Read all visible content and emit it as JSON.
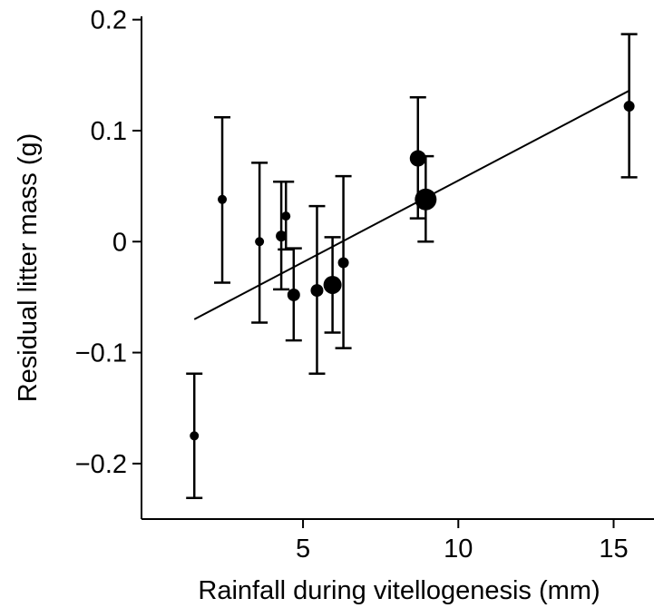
{
  "chart_data": {
    "type": "scatter",
    "title": "",
    "xlabel": "Rainfall during vitellogenesis (mm)",
    "ylabel": "Residual litter mass (g)",
    "xlim": [
      -0.2,
      16.3
    ],
    "ylim": [
      -0.25,
      0.203
    ],
    "x_ticks": [
      5,
      10,
      15
    ],
    "y_ticks": [
      -0.2,
      -0.1,
      0,
      0.1,
      0.2
    ],
    "x_tick_labels": [
      "5",
      "10",
      "15"
    ],
    "y_tick_labels": [
      "−0.2",
      "−0.1",
      "0",
      "0.1",
      "0.2"
    ],
    "grid": false,
    "legend": "none",
    "colors": {
      "points": "#000000",
      "lines": "#000000"
    },
    "points": [
      {
        "x": 1.5,
        "y": -0.175,
        "low": -0.231,
        "high": -0.119,
        "size": 5
      },
      {
        "x": 2.4,
        "y": 0.038,
        "low": -0.037,
        "high": 0.112,
        "size": 5
      },
      {
        "x": 3.6,
        "y": 0.0,
        "low": -0.073,
        "high": 0.071,
        "size": 5
      },
      {
        "x": 4.3,
        "y": 0.005,
        "low": -0.043,
        "high": 0.054,
        "size": 6
      },
      {
        "x": 4.45,
        "y": 0.023,
        "low": -0.007,
        "high": 0.054,
        "size": 5
      },
      {
        "x": 4.7,
        "y": -0.048,
        "low": -0.089,
        "high": -0.006,
        "size": 7
      },
      {
        "x": 5.45,
        "y": -0.044,
        "low": -0.119,
        "high": 0.032,
        "size": 7
      },
      {
        "x": 5.95,
        "y": -0.039,
        "low": -0.082,
        "high": 0.004,
        "size": 10
      },
      {
        "x": 6.3,
        "y": -0.019,
        "low": -0.096,
        "high": 0.059,
        "size": 6
      },
      {
        "x": 8.7,
        "y": 0.075,
        "low": 0.021,
        "high": 0.13,
        "size": 9
      },
      {
        "x": 8.95,
        "y": 0.038,
        "low": 0.0,
        "high": 0.077,
        "size": 12
      },
      {
        "x": 15.5,
        "y": 0.122,
        "low": 0.058,
        "high": 0.187,
        "size": 6
      }
    ],
    "fit_line": {
      "x": [
        1.5,
        15.5
      ],
      "y": [
        -0.07,
        0.136
      ]
    }
  }
}
